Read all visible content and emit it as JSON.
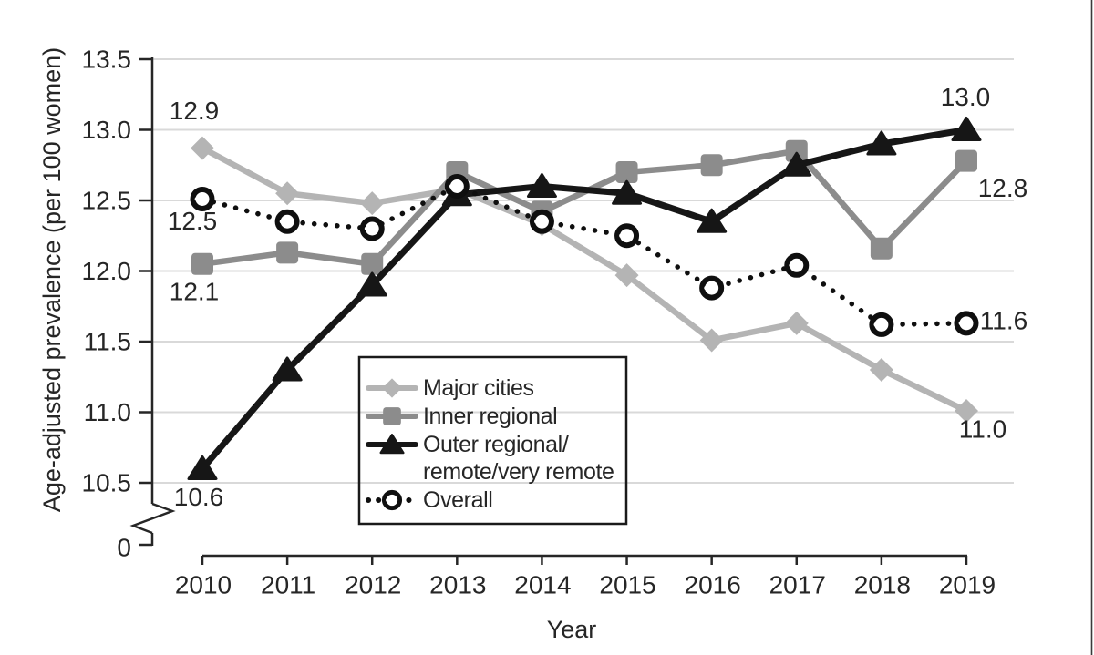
{
  "figure": {
    "background": "#ffffff",
    "right_border_color": "#3a3a3a"
  },
  "chart_data": {
    "type": "line",
    "title": "",
    "xlabel": "Year",
    "ylabel": "Age-adjusted prevalence (per 100 women)",
    "x": [
      2010,
      2011,
      2012,
      2013,
      2014,
      2015,
      2016,
      2017,
      2018,
      2019
    ],
    "x_tick_labels": [
      "2010",
      "2011",
      "2012",
      "2013",
      "2014",
      "2015",
      "2016",
      "2017",
      "2018",
      "2019"
    ],
    "y_tick_values": [
      13.5,
      13.0,
      12.5,
      12.0,
      11.5,
      11.0,
      10.5
    ],
    "y_tick_labels": [
      "13.5",
      "13.0",
      "12.5",
      "12.0",
      "11.5",
      "11.0",
      "10.5"
    ],
    "y_axis_break": true,
    "y_axis_break_label": "0",
    "ylim": [
      10.5,
      13.5
    ],
    "grid": "horizontal",
    "gridline_color": "#d9d9d9",
    "axis_color": "#262626",
    "text_color": "#262626",
    "legend_position": "inside-bottom-center-left",
    "series": [
      {
        "name": "Major cities",
        "label_lines": [
          "Major cities"
        ],
        "marker": "diamond",
        "line_style": "solid",
        "color": "#b4b4b4",
        "values": [
          12.87,
          12.55,
          12.48,
          12.58,
          12.33,
          11.97,
          11.51,
          11.63,
          11.3,
          11.01
        ]
      },
      {
        "name": "Inner regional",
        "label_lines": [
          "Inner regional"
        ],
        "marker": "square",
        "line_style": "solid",
        "color": "#8c8c8c",
        "values": [
          12.05,
          12.13,
          12.05,
          12.7,
          12.42,
          12.7,
          12.75,
          12.85,
          12.16,
          12.78
        ]
      },
      {
        "name": "Outer regional/remote/very remote",
        "label_lines": [
          "Outer regional/",
          "remote/very remote"
        ],
        "marker": "triangle",
        "line_style": "solid",
        "color": "#161616",
        "values": [
          10.6,
          11.3,
          11.9,
          12.54,
          12.6,
          12.55,
          12.35,
          12.75,
          12.9,
          13.0
        ]
      },
      {
        "name": "Overall",
        "label_lines": [
          "Overall"
        ],
        "marker": "open-circle",
        "line_style": "dotted",
        "color": "#0f0f0f",
        "values": [
          12.51,
          12.35,
          12.3,
          12.6,
          12.35,
          12.25,
          11.88,
          12.04,
          11.62,
          11.63
        ]
      }
    ],
    "annotations": [
      {
        "text": "12.9",
        "series": 0,
        "point": 0,
        "offset": [
          -9,
          -41
        ]
      },
      {
        "text": "12.5",
        "series": 3,
        "point": 0,
        "offset": [
          -11,
          24
        ]
      },
      {
        "text": "12.1",
        "series": 1,
        "point": 0,
        "offset": [
          -9,
          30
        ]
      },
      {
        "text": "10.6",
        "series": 2,
        "point": 0,
        "offset": [
          -4,
          31
        ]
      },
      {
        "text": "13.0",
        "series": 2,
        "point": 9,
        "offset": [
          -1,
          -36
        ]
      },
      {
        "text": "12.8",
        "series": 1,
        "point": 9,
        "offset": [
          40,
          30
        ]
      },
      {
        "text": "11.6",
        "series": 3,
        "point": 9,
        "offset": [
          41,
          -3
        ]
      },
      {
        "text": "11.0",
        "series": 0,
        "point": 9,
        "offset": [
          18,
          20
        ]
      }
    ]
  }
}
